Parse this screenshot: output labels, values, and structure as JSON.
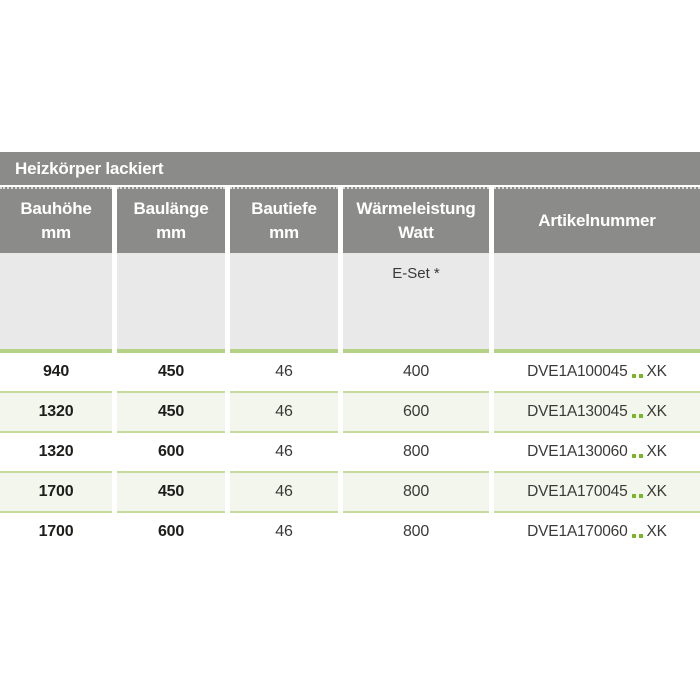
{
  "table": {
    "title": "Heizkörper lackiert",
    "columns": [
      {
        "label": "Bauhöhe",
        "unit": "mm"
      },
      {
        "label": "Baulänge",
        "unit": "mm"
      },
      {
        "label": "Bautiefe",
        "unit": "mm"
      },
      {
        "label": "Wärmeleistung",
        "unit": "Watt"
      },
      {
        "label": "Artikelnummer",
        "unit": ""
      }
    ],
    "subheader_label": "E-Set *",
    "rows": [
      {
        "height_mm": "940",
        "length_mm": "450",
        "depth_mm": "46",
        "watt": "400",
        "article_prefix": "DVE1A100045",
        "article_suffix": "XK"
      },
      {
        "height_mm": "1320",
        "length_mm": "450",
        "depth_mm": "46",
        "watt": "600",
        "article_prefix": "DVE1A130045",
        "article_suffix": "XK"
      },
      {
        "height_mm": "1320",
        "length_mm": "600",
        "depth_mm": "46",
        "watt": "800",
        "article_prefix": "DVE1A130060",
        "article_suffix": "XK"
      },
      {
        "height_mm": "1700",
        "length_mm": "450",
        "depth_mm": "46",
        "watt": "800",
        "article_prefix": "DVE1A170045",
        "article_suffix": "XK"
      },
      {
        "height_mm": "1700",
        "length_mm": "600",
        "depth_mm": "46",
        "watt": "800",
        "article_prefix": "DVE1A170060",
        "article_suffix": "XK"
      }
    ],
    "colors": {
      "header_gray": "#8b8b89",
      "subheader_gray": "#e9e9e9",
      "rule_green_thick": "#b4d286",
      "rule_green_thin": "#c6da9c",
      "row_tint": "#f3f6ec",
      "dot_green": "#76b82a",
      "text_dark": "#3a3a39"
    }
  }
}
